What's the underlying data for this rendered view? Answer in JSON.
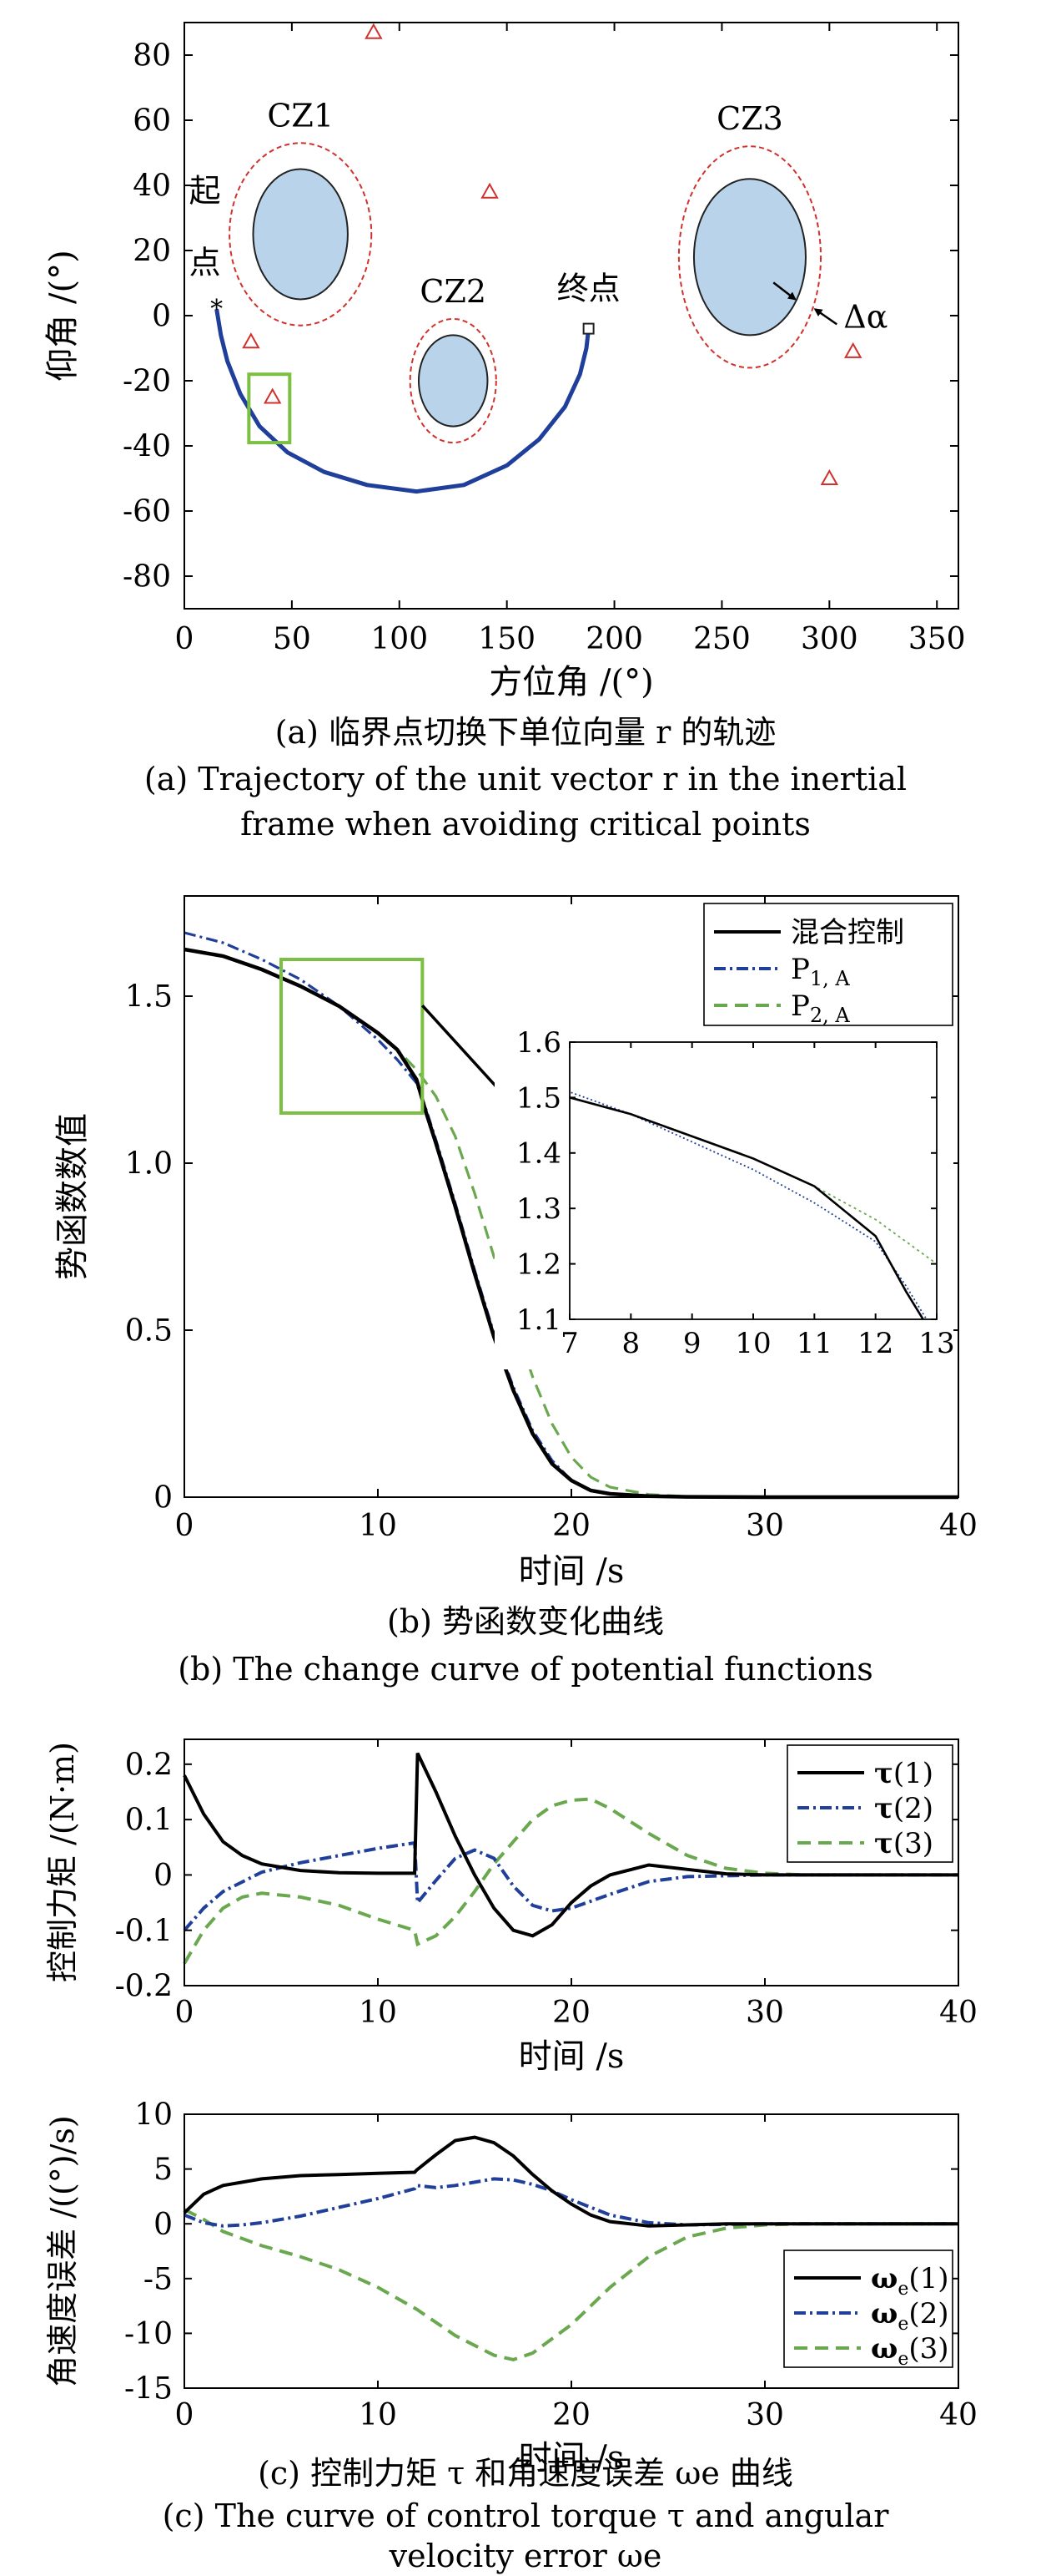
{
  "panel_a": {
    "caption_cn": "(a) 临界点切换下单位向量 r 的轨迹",
    "caption_en_1": "(a) Trajectory of the unit vector r in the inertial",
    "caption_en_2": "frame when avoiding critical points"
  },
  "panel_b": {
    "caption_cn": "(b) 势函数变化曲线",
    "caption_en": "(b) The change curve of potential functions"
  },
  "panel_c": {
    "caption_cn": "(c) 控制力矩 τ 和角速度误差 ωe 曲线",
    "caption_en_1": "(c) The curve of control torque τ and angular",
    "caption_en_2": "velocity error ωe"
  },
  "colors": {
    "main": "#1f3f9b",
    "green": "#6aa84f",
    "black": "#000000",
    "red": "#d0312d",
    "zone_fill": "#b8d3ea",
    "box": "#7cc043"
  },
  "chart_data": [
    {
      "type": "scatter",
      "name": "trajectory",
      "xlabel": "方位角 /(°)",
      "ylabel": "仰角 /(°)",
      "xlim": [
        0,
        360
      ],
      "ylim": [
        -90,
        90
      ],
      "xticks": [
        0,
        50,
        100,
        150,
        200,
        250,
        300,
        350
      ],
      "yticks": [
        80,
        60,
        40,
        20,
        0,
        -20,
        -40,
        -60,
        -80
      ],
      "grid": false,
      "zones": [
        {
          "label": "CZ1",
          "center": [
            54,
            25
          ],
          "radii": [
            22,
            20
          ],
          "margin_radii": [
            33,
            28
          ]
        },
        {
          "label": "CZ2",
          "center": [
            125,
            -20
          ],
          "radii": [
            16,
            14
          ],
          "margin_radii": [
            20,
            19
          ]
        },
        {
          "label": "CZ3",
          "center": [
            263,
            18
          ],
          "radii": [
            26,
            24
          ],
          "margin_radii": [
            33,
            34
          ]
        }
      ],
      "start_label": "起点",
      "end_label": "终点",
      "margin_label": "Δα",
      "start_point": [
        15,
        2
      ],
      "end_point": [
        188,
        -4
      ],
      "trajectory": [
        [
          15,
          2
        ],
        [
          17,
          -6
        ],
        [
          20,
          -14
        ],
        [
          26,
          -24
        ],
        [
          35,
          -34
        ],
        [
          48,
          -42
        ],
        [
          65,
          -48
        ],
        [
          85,
          -52
        ],
        [
          108,
          -54
        ],
        [
          130,
          -52
        ],
        [
          150,
          -46
        ],
        [
          165,
          -38
        ],
        [
          177,
          -28
        ],
        [
          184,
          -18
        ],
        [
          187,
          -10
        ],
        [
          188,
          -4
        ]
      ],
      "critical_points": [
        [
          88,
          87
        ],
        [
          142,
          38
        ],
        [
          31,
          -8
        ],
        [
          41,
          -25
        ],
        [
          311,
          -11
        ],
        [
          300,
          -50
        ]
      ],
      "highlight_box": {
        "x": [
          30,
          49
        ],
        "y": [
          -39,
          -18
        ]
      }
    },
    {
      "type": "line",
      "name": "potential",
      "xlabel": "时间 /s",
      "ylabel": "势函数数值",
      "xlim": [
        0,
        40
      ],
      "ylim": [
        0,
        1.8
      ],
      "xticks": [
        0,
        10,
        20,
        30,
        40
      ],
      "yticks": [
        0,
        0.5,
        1.0,
        1.5
      ],
      "ytick_labels": [
        "0",
        "0.5",
        "1.0",
        "1.5"
      ],
      "legend_position": "top-right",
      "grid": false,
      "x": [
        0,
        2,
        4,
        6,
        8,
        10,
        11,
        12,
        12.5,
        13,
        14,
        15,
        16,
        17,
        18,
        19,
        20,
        21,
        22,
        24,
        26,
        30,
        35,
        40
      ],
      "series": [
        {
          "name": "混合控制",
          "style": "solid",
          "color": "#000000",
          "values": [
            1.64,
            1.62,
            1.58,
            1.53,
            1.47,
            1.39,
            1.34,
            1.25,
            1.15,
            1.06,
            0.87,
            0.67,
            0.48,
            0.32,
            0.19,
            0.1,
            0.05,
            0.02,
            0.01,
            0.003,
            0.001,
            0,
            0,
            0
          ]
        },
        {
          "name": "P1, A",
          "style": "dashdot",
          "color": "#1f3f9b",
          "values": [
            1.69,
            1.66,
            1.61,
            1.55,
            1.47,
            1.37,
            1.31,
            1.24,
            1.16,
            1.07,
            0.88,
            0.68,
            0.49,
            0.33,
            0.2,
            0.11,
            0.05,
            0.02,
            0.01,
            0.003,
            0.001,
            0,
            0,
            0
          ]
        },
        {
          "name": "P2, A",
          "style": "dashed",
          "color": "#6aa84f",
          "values": [
            1.64,
            1.62,
            1.58,
            1.53,
            1.47,
            1.39,
            1.34,
            1.28,
            1.24,
            1.2,
            1.08,
            0.91,
            0.72,
            0.53,
            0.36,
            0.22,
            0.12,
            0.06,
            0.03,
            0.008,
            0.002,
            0,
            0,
            0
          ]
        }
      ],
      "inset": {
        "xlim": [
          7,
          13
        ],
        "ylim": [
          1.1,
          1.6
        ],
        "xticks": [
          7,
          8,
          9,
          10,
          11,
          12,
          13
        ],
        "yticks": [
          1.1,
          1.2,
          1.3,
          1.4,
          1.5,
          1.6
        ],
        "ytick_labels": [
          "1.1",
          "1.2",
          "1.3",
          "1.4",
          "1.5",
          "1.6"
        ],
        "zoom_box": {
          "x": [
            5,
            12.3
          ],
          "y": [
            1.15,
            1.61
          ]
        }
      }
    },
    {
      "type": "line",
      "name": "torque",
      "xlabel": "时间 /s",
      "ylabel": "控制力矩 /(N·m)",
      "xlim": [
        0,
        40
      ],
      "ylim": [
        -0.2,
        0.25
      ],
      "xticks": [
        0,
        10,
        20,
        30,
        40
      ],
      "yticks": [
        0.2,
        0.1,
        0,
        -0.1,
        -0.2
      ],
      "ytick_labels": [
        "0.2",
        "0.1",
        "0",
        "-0.1",
        "-0.2"
      ],
      "legend_position": "top-right",
      "grid": false,
      "series": [
        {
          "name": "τ(1)",
          "style": "solid",
          "color": "#000000",
          "points": [
            [
              0,
              0.18
            ],
            [
              1,
              0.11
            ],
            [
              2,
              0.06
            ],
            [
              3,
              0.035
            ],
            [
              4,
              0.02
            ],
            [
              6,
              0.008
            ],
            [
              8,
              0.004
            ],
            [
              10,
              0.003
            ],
            [
              11.9,
              0.003
            ],
            [
              12.05,
              0.22
            ],
            [
              13,
              0.15
            ],
            [
              14,
              0.07
            ],
            [
              15,
              0.0
            ],
            [
              16,
              -0.06
            ],
            [
              17,
              -0.1
            ],
            [
              18,
              -0.11
            ],
            [
              19,
              -0.09
            ],
            [
              20,
              -0.05
            ],
            [
              21,
              -0.02
            ],
            [
              22,
              0.0
            ],
            [
              24,
              0.018
            ],
            [
              26,
              0.01
            ],
            [
              28,
              0.002
            ],
            [
              30,
              0
            ],
            [
              40,
              0
            ]
          ]
        },
        {
          "name": "τ(2)",
          "style": "dashdot",
          "color": "#1f3f9b",
          "points": [
            [
              0,
              -0.1
            ],
            [
              1,
              -0.06
            ],
            [
              2,
              -0.03
            ],
            [
              4,
              0.005
            ],
            [
              6,
              0.022
            ],
            [
              8,
              0.035
            ],
            [
              10,
              0.048
            ],
            [
              11.9,
              0.058
            ],
            [
              12.05,
              -0.05
            ],
            [
              13,
              -0.01
            ],
            [
              14,
              0.03
            ],
            [
              15,
              0.045
            ],
            [
              16,
              0.03
            ],
            [
              17,
              -0.02
            ],
            [
              18,
              -0.055
            ],
            [
              19,
              -0.065
            ],
            [
              20,
              -0.06
            ],
            [
              22,
              -0.035
            ],
            [
              24,
              -0.012
            ],
            [
              26,
              -0.003
            ],
            [
              30,
              0
            ],
            [
              40,
              0
            ]
          ]
        },
        {
          "name": "τ(3)",
          "style": "dashed",
          "color": "#6aa84f",
          "points": [
            [
              0,
              -0.16
            ],
            [
              1,
              -0.1
            ],
            [
              2,
              -0.06
            ],
            [
              3,
              -0.04
            ],
            [
              4,
              -0.033
            ],
            [
              6,
              -0.04
            ],
            [
              8,
              -0.055
            ],
            [
              10,
              -0.08
            ],
            [
              11.9,
              -0.1
            ],
            [
              12.05,
              -0.125
            ],
            [
              13,
              -0.11
            ],
            [
              14,
              -0.075
            ],
            [
              15,
              -0.03
            ],
            [
              16,
              0.02
            ],
            [
              17,
              0.06
            ],
            [
              18,
              0.1
            ],
            [
              19,
              0.125
            ],
            [
              20,
              0.135
            ],
            [
              21,
              0.137
            ],
            [
              22,
              0.12
            ],
            [
              24,
              0.075
            ],
            [
              26,
              0.035
            ],
            [
              28,
              0.012
            ],
            [
              30,
              0.003
            ],
            [
              32,
              0
            ],
            [
              40,
              0
            ]
          ]
        }
      ]
    },
    {
      "type": "line",
      "name": "angular_velocity_error",
      "xlabel": "时间 /s",
      "ylabel": "角速度误差 /((°)/s)",
      "xlim": [
        0,
        40
      ],
      "ylim": [
        -15,
        10
      ],
      "xticks": [
        0,
        10,
        20,
        30,
        40
      ],
      "yticks": [
        10,
        5,
        0,
        -5,
        -10,
        -15
      ],
      "ytick_labels": [
        "10",
        "5",
        "0",
        "-5",
        "-10",
        "-15"
      ],
      "legend_position": "bottom-right",
      "grid": false,
      "series": [
        {
          "name": "ωe(1)",
          "style": "solid",
          "color": "#000000",
          "points": [
            [
              0,
              1
            ],
            [
              1,
              2.7
            ],
            [
              2,
              3.5
            ],
            [
              4,
              4.1
            ],
            [
              6,
              4.4
            ],
            [
              8,
              4.5
            ],
            [
              10,
              4.6
            ],
            [
              11.9,
              4.7
            ],
            [
              12,
              4.9
            ],
            [
              13,
              6.3
            ],
            [
              14,
              7.6
            ],
            [
              15,
              7.9
            ],
            [
              16,
              7.4
            ],
            [
              17,
              6.2
            ],
            [
              18,
              4.5
            ],
            [
              19,
              3.0
            ],
            [
              20,
              1.8
            ],
            [
              21,
              0.8
            ],
            [
              22,
              0.2
            ],
            [
              24,
              -0.2
            ],
            [
              26,
              -0.1
            ],
            [
              28,
              0
            ],
            [
              40,
              0
            ]
          ]
        },
        {
          "name": "ωe(2)",
          "style": "dashdot",
          "color": "#1f3f9b",
          "points": [
            [
              0,
              0.8
            ],
            [
              1,
              0.1
            ],
            [
              2,
              -0.2
            ],
            [
              3,
              -0.1
            ],
            [
              4,
              0.1
            ],
            [
              6,
              0.7
            ],
            [
              8,
              1.5
            ],
            [
              10,
              2.3
            ],
            [
              11.9,
              3.2
            ],
            [
              12,
              3.5
            ],
            [
              13,
              3.3
            ],
            [
              14,
              3.5
            ],
            [
              16,
              4.1
            ],
            [
              17,
              4.0
            ],
            [
              18,
              3.6
            ],
            [
              19,
              3.0
            ],
            [
              20,
              2.2
            ],
            [
              21,
              1.5
            ],
            [
              22,
              0.8
            ],
            [
              24,
              0.1
            ],
            [
              26,
              -0.1
            ],
            [
              28,
              -0.05
            ],
            [
              30,
              0
            ],
            [
              40,
              0
            ]
          ]
        },
        {
          "name": "ωe(3)",
          "style": "dashed",
          "color": "#6aa84f",
          "points": [
            [
              0,
              1.3
            ],
            [
              1,
              0.4
            ],
            [
              2,
              -0.7
            ],
            [
              4,
              -2.0
            ],
            [
              6,
              -3.0
            ],
            [
              8,
              -4.2
            ],
            [
              10,
              -5.8
            ],
            [
              12,
              -7.8
            ],
            [
              14,
              -10.2
            ],
            [
              16,
              -12.0
            ],
            [
              17,
              -12.4
            ],
            [
              18,
              -11.8
            ],
            [
              20,
              -9.2
            ],
            [
              22,
              -5.8
            ],
            [
              24,
              -3.0
            ],
            [
              26,
              -1.2
            ],
            [
              28,
              -0.4
            ],
            [
              30,
              -0.1
            ],
            [
              32,
              0
            ],
            [
              40,
              0
            ]
          ]
        }
      ]
    }
  ]
}
